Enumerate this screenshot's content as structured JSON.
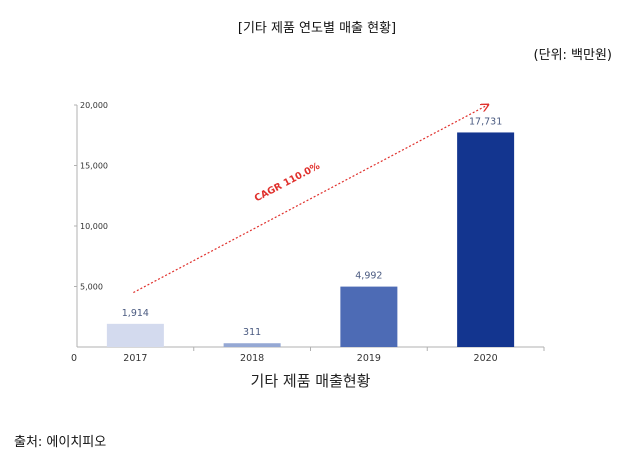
{
  "header": {
    "title": "[기타 제품 연도별 매출 현황]",
    "unit": "(단위: 백만원)"
  },
  "footer": {
    "source": "출처: 에이치피오"
  },
  "chart_data": {
    "type": "bar",
    "title": "기타 제품 매출현황",
    "xlabel": "",
    "ylabel": "",
    "categories": [
      "2017",
      "2018",
      "2019",
      "2020"
    ],
    "values": [
      1914,
      311,
      4992,
      17731
    ],
    "value_labels": [
      "1,914",
      "311",
      "4,992",
      "17,731"
    ],
    "bar_colors": [
      "#d3daee",
      "#95a8d4",
      "#4d6bb5",
      "#13358f"
    ],
    "label_colors": [
      "#4a5a80",
      "#4a5a80",
      "#4a5a80",
      "#4a5a80"
    ],
    "ylim": [
      0,
      20000
    ],
    "yticks": [
      0,
      5000,
      10000,
      15000,
      20000
    ],
    "ytick_labels": [
      "0",
      "5,000",
      "10,000",
      "15,000",
      "20,000"
    ],
    "annotation": {
      "text": "CAGR 110.0%",
      "color": "#e0302c",
      "style": "dotted-arrow"
    },
    "grid": false,
    "legend": "none"
  }
}
